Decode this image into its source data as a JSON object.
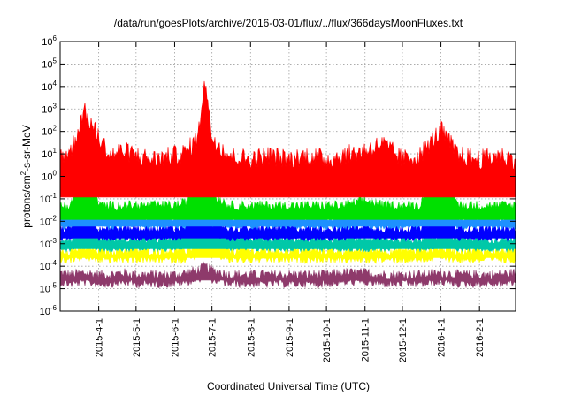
{
  "chart_data": {
    "type": "line",
    "title": "/data/run/goesPlots/archive/2016-03-01/flux/../flux/366daysMoonFluxes.txt",
    "xlabel": "Coordinated Universal Time (UTC)",
    "ylabel": {
      "prefix": "protons/cm",
      "sup": "2",
      "suffix": "-s-sr-MeV"
    },
    "y_scale": "log",
    "ylim": [
      1e-06,
      1000000.0
    ],
    "y_ticks": [
      {
        "value": 1e-06,
        "base": "10",
        "exp": "-6"
      },
      {
        "value": 1e-05,
        "base": "10",
        "exp": "-5"
      },
      {
        "value": 0.0001,
        "base": "10",
        "exp": "-4"
      },
      {
        "value": 0.001,
        "base": "10",
        "exp": "-3"
      },
      {
        "value": 0.01,
        "base": "10",
        "exp": "-2"
      },
      {
        "value": 0.1,
        "base": "10",
        "exp": "-1"
      },
      {
        "value": 1,
        "base": "10",
        "exp": "0"
      },
      {
        "value": 10,
        "base": "10",
        "exp": "1"
      },
      {
        "value": 100,
        "base": "10",
        "exp": "2"
      },
      {
        "value": 1000,
        "base": "10",
        "exp": "3"
      },
      {
        "value": 10000,
        "base": "10",
        "exp": "4"
      },
      {
        "value": 100000,
        "base": "10",
        "exp": "5"
      },
      {
        "value": 1000000,
        "base": "10",
        "exp": "6"
      }
    ],
    "xlim": [
      "2015-03-01",
      "2016-03-01"
    ],
    "x_ticks": [
      "2015-4-1",
      "2015-5-1",
      "2015-6-1",
      "2015-7-1",
      "2015-8-1",
      "2015-9-1",
      "2015-10-1",
      "2015-11-1",
      "2015-12-1",
      "2016-1-1",
      "2016-2-1"
    ],
    "x_tick_dates": [
      "2015-04-01",
      "2015-05-01",
      "2015-06-01",
      "2015-07-01",
      "2015-08-01",
      "2015-09-01",
      "2015-10-01",
      "2015-11-01",
      "2015-12-01",
      "2016-01-01",
      "2016-02-01"
    ],
    "grid": true,
    "legend": "none",
    "series_colors": [
      "#8e3a6b",
      "#ffff00",
      "#00c8a8",
      "#0000ff",
      "#1e90ff",
      "#00e000",
      "#ff0000"
    ],
    "series": [
      {
        "color": "#8e3a6b",
        "baseline": 2e-05,
        "x": [
          "2015-03-01",
          "2015-03-10",
          "2015-03-20",
          "2015-04-01",
          "2015-04-10",
          "2015-04-20",
          "2015-05-01",
          "2015-05-15",
          "2015-06-01",
          "2015-06-10",
          "2015-06-20",
          "2015-06-25",
          "2015-07-01",
          "2015-07-15",
          "2015-08-01",
          "2015-08-15",
          "2015-09-01",
          "2015-09-15",
          "2015-10-01",
          "2015-10-15",
          "2015-11-01",
          "2015-11-15",
          "2015-12-01",
          "2015-12-15",
          "2016-01-01",
          "2016-01-15",
          "2016-02-01",
          "2016-02-15",
          "2016-03-01"
        ],
        "y": [
          3e-05,
          2.5e-05,
          3e-05,
          2.5e-05,
          2.5e-05,
          3e-05,
          2.5e-05,
          2.5e-05,
          2.5e-05,
          3e-05,
          4e-05,
          6e-05,
          4e-05,
          2.5e-05,
          2.5e-05,
          2.5e-05,
          2.5e-05,
          2.5e-05,
          2.5e-05,
          3e-05,
          3e-05,
          2.5e-05,
          2.5e-05,
          2.5e-05,
          3e-05,
          2.5e-05,
          2.5e-05,
          2.5e-05,
          3e-05
        ]
      },
      {
        "color": "#ffff00",
        "baseline": 0.0002,
        "x": [
          "2015-03-01",
          "2015-03-10",
          "2015-03-20",
          "2015-04-01",
          "2015-04-10",
          "2015-04-20",
          "2015-05-01",
          "2015-05-15",
          "2015-06-01",
          "2015-06-10",
          "2015-06-20",
          "2015-06-25",
          "2015-07-01",
          "2015-07-15",
          "2015-08-01",
          "2015-08-15",
          "2015-09-01",
          "2015-09-15",
          "2015-10-01",
          "2015-10-15",
          "2015-11-01",
          "2015-11-15",
          "2015-12-01",
          "2015-12-15",
          "2016-01-01",
          "2016-01-15",
          "2016-02-01",
          "2016-02-15",
          "2016-03-01"
        ],
        "y": [
          0.0003,
          0.0003,
          0.0004,
          0.0003,
          0.0003,
          0.0003,
          0.0003,
          0.0003,
          0.0003,
          0.0003,
          0.0005,
          0.001,
          0.0006,
          0.0003,
          0.0003,
          0.0003,
          0.0003,
          0.0003,
          0.0003,
          0.0003,
          0.0003,
          0.0003,
          0.0003,
          0.0003,
          0.0004,
          0.0003,
          0.0003,
          0.0003,
          0.0003
        ]
      },
      {
        "color": "#00c8a8",
        "baseline": 0.0005,
        "x": [
          "2015-03-01",
          "2015-03-10",
          "2015-03-20",
          "2015-04-01",
          "2015-04-10",
          "2015-04-20",
          "2015-05-01",
          "2015-05-15",
          "2015-06-01",
          "2015-06-10",
          "2015-06-20",
          "2015-06-25",
          "2015-07-01",
          "2015-07-15",
          "2015-08-01",
          "2015-08-15",
          "2015-09-01",
          "2015-09-15",
          "2015-10-01",
          "2015-10-15",
          "2015-11-01",
          "2015-11-15",
          "2015-12-01",
          "2015-12-15",
          "2016-01-01",
          "2016-01-15",
          "2016-02-01",
          "2016-02-15",
          "2016-03-01"
        ],
        "y": [
          0.001,
          0.001,
          0.003,
          0.001,
          0.001,
          0.001,
          0.001,
          0.001,
          0.001,
          0.0015,
          0.005,
          0.04,
          0.003,
          0.001,
          0.001,
          0.001,
          0.001,
          0.001,
          0.001,
          0.001,
          0.001,
          0.001,
          0.001,
          0.001,
          0.0015,
          0.001,
          0.001,
          0.001,
          0.001
        ]
      },
      {
        "color": "#0000ff",
        "baseline": 0.0015,
        "x": [
          "2015-03-01",
          "2015-03-10",
          "2015-03-20",
          "2015-04-01",
          "2015-04-10",
          "2015-04-20",
          "2015-05-01",
          "2015-05-15",
          "2015-06-01",
          "2015-06-10",
          "2015-06-20",
          "2015-06-25",
          "2015-07-01",
          "2015-07-15",
          "2015-08-01",
          "2015-08-15",
          "2015-09-01",
          "2015-09-15",
          "2015-10-01",
          "2015-10-15",
          "2015-11-01",
          "2015-11-15",
          "2015-12-01",
          "2015-12-15",
          "2016-01-01",
          "2016-01-15",
          "2016-02-01",
          "2016-02-15",
          "2016-03-01"
        ],
        "y": [
          0.003,
          0.003,
          0.02,
          0.003,
          0.003,
          0.003,
          0.003,
          0.003,
          0.003,
          0.004,
          0.02,
          3.0,
          0.005,
          0.003,
          0.003,
          0.003,
          0.003,
          0.003,
          0.003,
          0.003,
          0.004,
          0.003,
          0.003,
          0.003,
          0.01,
          0.003,
          0.003,
          0.003,
          0.003
        ]
      },
      {
        "color": "#1e90ff",
        "baseline": 0.005,
        "x": [
          "2015-03-01",
          "2015-03-10",
          "2015-03-20",
          "2015-04-01",
          "2015-04-10",
          "2015-04-20",
          "2015-05-01",
          "2015-05-15",
          "2015-06-01",
          "2015-06-10",
          "2015-06-20",
          "2015-06-25",
          "2015-07-01",
          "2015-07-15",
          "2015-08-01",
          "2015-08-15",
          "2015-09-01",
          "2015-09-15",
          "2015-10-01",
          "2015-10-15",
          "2015-11-01",
          "2015-11-15",
          "2015-12-01",
          "2015-12-15",
          "2016-01-01",
          "2016-01-15",
          "2016-02-01",
          "2016-02-15",
          "2016-03-01"
        ],
        "y": [
          0.01,
          0.01,
          0.05,
          0.01,
          0.01,
          0.01,
          0.01,
          0.01,
          0.01,
          0.01,
          0.05,
          8.0,
          0.02,
          0.01,
          0.01,
          0.01,
          0.01,
          0.01,
          0.01,
          0.01,
          0.01,
          0.01,
          0.01,
          0.01,
          0.03,
          0.01,
          0.01,
          0.01,
          0.01
        ]
      },
      {
        "color": "#00e000",
        "baseline": 0.01,
        "x": [
          "2015-03-01",
          "2015-03-10",
          "2015-03-20",
          "2015-04-01",
          "2015-04-10",
          "2015-04-20",
          "2015-05-01",
          "2015-05-15",
          "2015-06-01",
          "2015-06-10",
          "2015-06-20",
          "2015-06-25",
          "2015-07-01",
          "2015-07-15",
          "2015-08-01",
          "2015-08-15",
          "2015-09-01",
          "2015-09-15",
          "2015-10-01",
          "2015-10-15",
          "2015-11-01",
          "2015-11-15",
          "2015-12-01",
          "2015-12-15",
          "2016-01-01",
          "2016-01-15",
          "2016-02-01",
          "2016-02-15",
          "2016-03-01"
        ],
        "y": [
          0.03,
          0.03,
          30.0,
          0.03,
          0.03,
          0.03,
          0.03,
          0.03,
          0.03,
          0.04,
          0.3,
          800.0,
          0.1,
          0.03,
          0.03,
          0.03,
          0.03,
          0.03,
          0.03,
          0.03,
          0.05,
          0.03,
          0.03,
          0.03,
          3.0,
          0.03,
          0.03,
          0.03,
          0.03
        ]
      },
      {
        "color": "#ff0000",
        "baseline": 0.1,
        "x": [
          "2015-03-01",
          "2015-03-10",
          "2015-03-20",
          "2015-04-01",
          "2015-04-10",
          "2015-04-20",
          "2015-05-01",
          "2015-05-15",
          "2015-06-01",
          "2015-06-10",
          "2015-06-20",
          "2015-06-25",
          "2015-07-01",
          "2015-07-15",
          "2015-08-01",
          "2015-08-15",
          "2015-09-01",
          "2015-09-15",
          "2015-10-01",
          "2015-10-15",
          "2015-11-01",
          "2015-11-15",
          "2015-12-01",
          "2015-12-15",
          "2016-01-01",
          "2016-01-15",
          "2016-02-01",
          "2016-02-15",
          "2016-03-01"
        ],
        "y": [
          3.0,
          5.0,
          300.0,
          20.0,
          3.0,
          5.0,
          3.0,
          2.0,
          3.0,
          4.0,
          20.0,
          10000.0,
          20.0,
          3.0,
          2.0,
          3.0,
          2.0,
          3.0,
          2.0,
          3.0,
          5.0,
          10.0,
          2.0,
          3.0,
          40.0,
          3.0,
          2.0,
          3.0,
          2.0
        ]
      }
    ]
  }
}
